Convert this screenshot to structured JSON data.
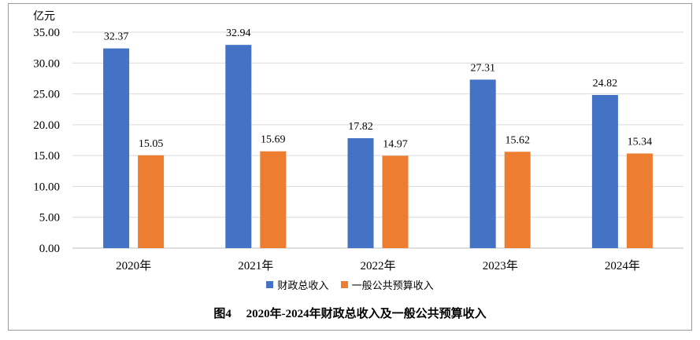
{
  "chart_data": {
    "type": "bar",
    "unit": "亿元",
    "categories": [
      "2020年",
      "2021年",
      "2022年",
      "2023年",
      "2024年"
    ],
    "series": [
      {
        "name": "财政总收入",
        "color": "#4472C4",
        "values": [
          32.37,
          32.94,
          17.82,
          27.31,
          24.82
        ]
      },
      {
        "name": "一般公共预算收入",
        "color": "#ED7D31",
        "values": [
          15.05,
          15.69,
          14.97,
          15.62,
          15.34
        ]
      }
    ],
    "ylim": [
      0,
      35
    ],
    "yticks": [
      "0.00",
      "5.00",
      "10.00",
      "15.00",
      "20.00",
      "25.00",
      "30.00",
      "35.00"
    ],
    "grid": true,
    "legend_position": "bottom",
    "caption_label": "图4",
    "title": "2020年-2024年财政总收入及一般公共预算收入"
  }
}
